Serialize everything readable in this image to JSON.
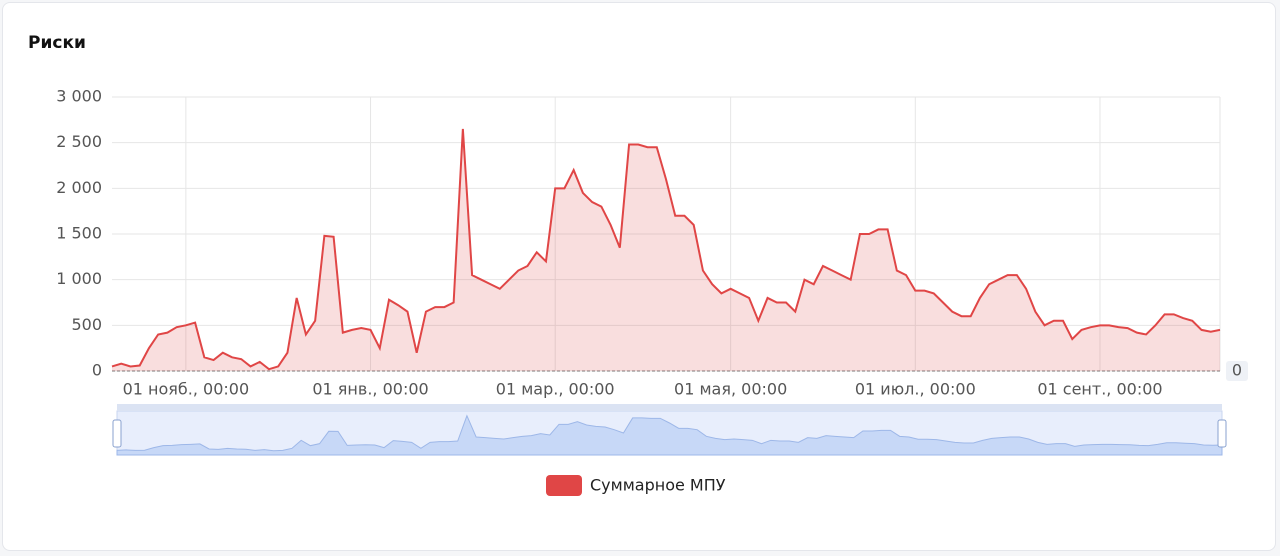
{
  "chart_data": {
    "type": "line",
    "title": "Риски",
    "categories": [
      null,
      null,
      null,
      null,
      null,
      null,
      null,
      null,
      "01 нояб., 00:00",
      null,
      null,
      null,
      null,
      null,
      null,
      null,
      null,
      null,
      null,
      null,
      null,
      null,
      null,
      null,
      null,
      null,
      null,
      null,
      "01 янв., 00:00",
      null,
      null,
      null,
      null,
      null,
      null,
      null,
      null,
      null,
      null,
      null,
      null,
      null,
      null,
      null,
      null,
      null,
      null,
      null,
      "01 мар., 00:00",
      null,
      null,
      null,
      null,
      null,
      null,
      null,
      null,
      null,
      null,
      null,
      null,
      null,
      null,
      null,
      null,
      null,
      null,
      "01 мая, 00:00",
      null,
      null,
      null,
      null,
      null,
      null,
      null,
      null,
      null,
      null,
      null,
      null,
      null,
      null,
      null,
      null,
      null,
      null,
      null,
      "01 июл., 00:00",
      null,
      null,
      null,
      null,
      null,
      null,
      null,
      null,
      null,
      null,
      null,
      null,
      null,
      null,
      null,
      null,
      null,
      null,
      null,
      "01 сент., 00:00",
      null,
      null,
      null,
      null,
      null,
      null,
      null,
      null,
      null,
      null,
      null,
      null,
      null
    ],
    "series": [
      {
        "name": "Суммарное МПУ",
        "color": "#e04646",
        "values": [
          50,
          80,
          50,
          60,
          250,
          400,
          420,
          480,
          500,
          530,
          150,
          120,
          200,
          150,
          130,
          50,
          100,
          20,
          50,
          200,
          800,
          400,
          550,
          1480,
          1470,
          420,
          450,
          470,
          450,
          250,
          780,
          720,
          650,
          200,
          650,
          700,
          700,
          750,
          2650,
          1050,
          1000,
          950,
          900,
          1000,
          1100,
          1150,
          1300,
          1200,
          2000,
          2000,
          2200,
          1950,
          1850,
          1800,
          1600,
          1350,
          2480,
          2480,
          2450,
          2450,
          2100,
          1700,
          1700,
          1600,
          1100,
          950,
          850,
          900,
          850,
          800,
          550,
          800,
          750,
          750,
          650,
          1000,
          950,
          1150,
          1100,
          1050,
          1000,
          1500,
          1500,
          1550,
          1550,
          1100,
          1050,
          880,
          880,
          850,
          750,
          650,
          600,
          600,
          800,
          950,
          1000,
          1050,
          1050,
          900,
          650,
          500,
          550,
          550,
          350,
          450,
          480,
          500,
          500,
          480,
          470,
          420,
          400,
          500,
          620,
          620,
          580,
          550,
          450,
          430,
          450
        ]
      }
    ],
    "ylim": [
      0,
      3000
    ],
    "yticks": [
      0,
      500,
      {
        "value": 1000,
        "label": "1 000"
      },
      {
        "value": 1500,
        "label": "1 500"
      },
      {
        "value": 2000,
        "label": "2 000"
      },
      {
        "value": 2500,
        "label": "2 500"
      },
      {
        "value": 3000,
        "label": "3 000"
      }
    ],
    "y2lim": [
      0,
      1
    ],
    "y2ticks": [
      0
    ],
    "grid": true
  }
}
